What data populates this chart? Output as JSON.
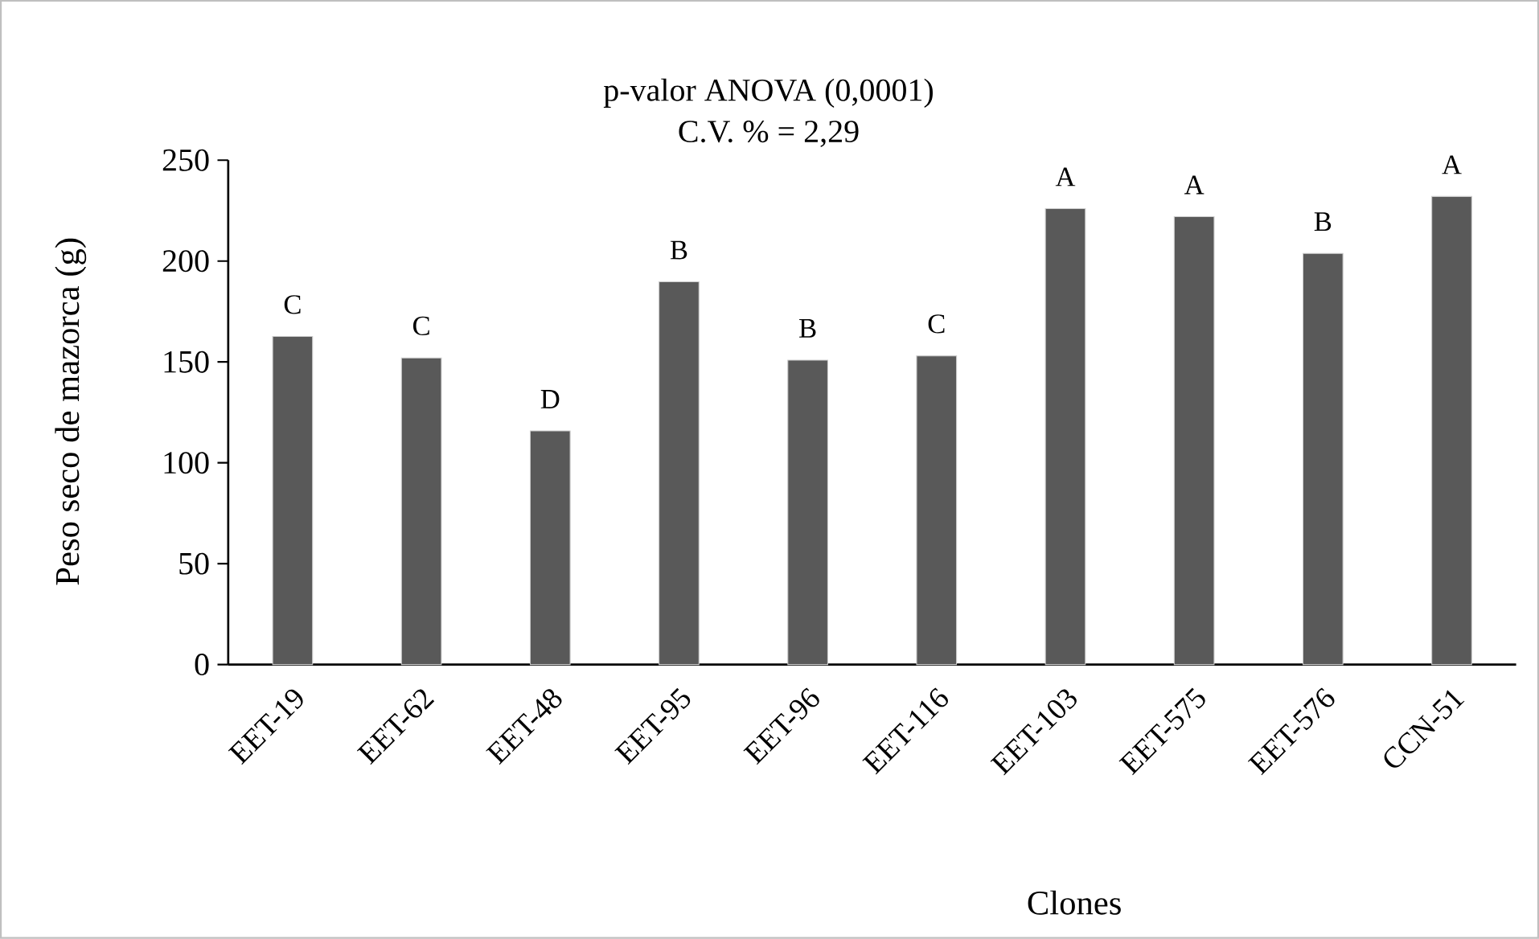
{
  "chart_data": {
    "type": "bar",
    "title": "p-valor ANOVA (0,0001)",
    "subtitle": "C.V. % = 2,29",
    "xlabel": "Clones",
    "ylabel": "Peso seco de mazorca (g)",
    "categories": [
      "EET-19",
      "EET-62",
      "EET-48",
      "EET-95",
      "EET-96",
      "EET-116",
      "EET-103",
      "EET-575",
      "EET-576",
      "CCN-51"
    ],
    "values": [
      162.6,
      152,
      115.8,
      189.7,
      150.9,
      153,
      226,
      222,
      203.8,
      232
    ],
    "color": "#595959",
    "ylim": [
      0,
      250
    ],
    "yticks": [
      0,
      50,
      100,
      150,
      200,
      250
    ],
    "annotations": [
      {
        "text": "C",
        "x": "EET-19",
        "y": 162.6
      },
      {
        "text": "C",
        "x": "EET-62",
        "y": 152
      },
      {
        "text": "D",
        "x": "EET-48",
        "y": 115.8
      },
      {
        "text": "B",
        "x": "EET-95",
        "y": 189.7
      },
      {
        "text": "B",
        "x": "EET-96",
        "y": 150.9
      },
      {
        "text": "C",
        "x": "EET-116",
        "y": 153
      },
      {
        "text": "A",
        "x": "EET-103",
        "y": 226
      },
      {
        "text": "A",
        "x": "EET-575",
        "y": 222
      },
      {
        "text": "B",
        "x": "EET-576",
        "y": 203.8
      },
      {
        "text": "A",
        "x": "CCN-51",
        "y": 232
      }
    ]
  }
}
